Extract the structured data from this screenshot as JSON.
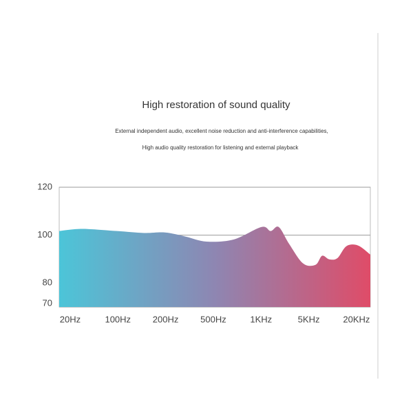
{
  "chart_data": {
    "type": "area",
    "title": "High restoration of sound quality",
    "subtitle": [
      "External independent audio, excellent noise reduction and anti-interference capabilities,",
      "High audio quality restoration for listening and external playback"
    ],
    "x": [
      -0.23,
      0.26,
      0.98,
      1.55,
      1.99,
      2.42,
      2.86,
      3.43,
      4.01,
      4.2,
      4.37,
      4.59,
      4.88,
      5.14,
      5.28,
      5.43,
      5.6,
      5.79,
      6.03,
      6.29
    ],
    "values": [
      101.7,
      102.6,
      101.7,
      100.9,
      101.1,
      99.4,
      97.3,
      98.2,
      103.4,
      101.7,
      103.4,
      96.3,
      88.2,
      87.6,
      91.4,
      89.9,
      90.4,
      95.4,
      95.7,
      91.9
    ],
    "gradient": [
      "#4cc5d8",
      "#8e86b2",
      "#df4c68"
    ],
    "xlim": [
      -0.23,
      6.29
    ],
    "xticks": [
      {
        "value": 0,
        "label": "20Hz"
      },
      {
        "value": 1,
        "label": "100Hz"
      },
      {
        "value": 2,
        "label": "200Hz"
      },
      {
        "value": 3,
        "label": "500Hz"
      },
      {
        "value": 4,
        "label": "1KHz"
      },
      {
        "value": 5,
        "label": "5KHz"
      },
      {
        "value": 6,
        "label": "20KHz"
      }
    ],
    "ylim": [
      70,
      120
    ],
    "yticks": [
      70,
      80,
      100,
      120
    ],
    "grid": true
  }
}
